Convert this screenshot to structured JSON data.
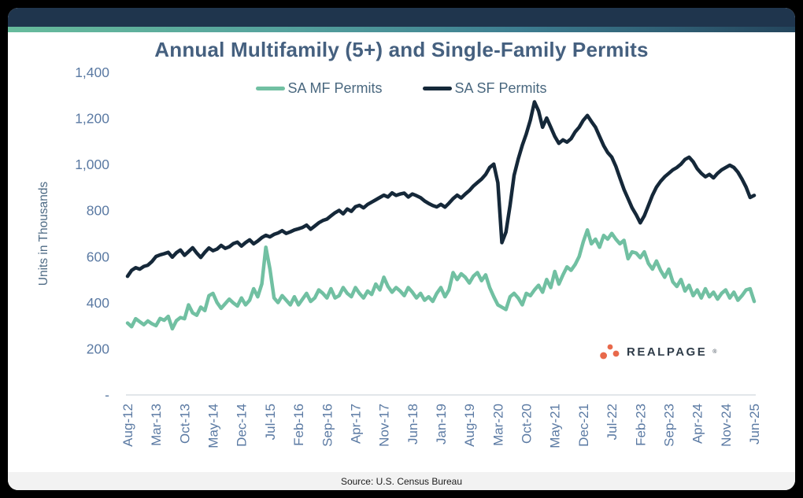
{
  "header": {
    "title": "Annual Multifamily (5+) and Single-Family Permits"
  },
  "colors": {
    "frame": "#000000",
    "card": "#ffffff",
    "topbar": "#1f354d",
    "accent_gradient": [
      "#67bb9c",
      "#3d7d90",
      "#24455c"
    ],
    "title_text": "#45607f",
    "tick_text": "#5b7aa3",
    "axis_title_text": "#4d6a84",
    "axis_line": "#d8dde4"
  },
  "chart_data": {
    "type": "line",
    "title": "Annual Multifamily (5+) and Single-Family Permits",
    "xlabel": "",
    "ylabel": "Units in Thousands",
    "ylim": [
      0,
      1400
    ],
    "grid": false,
    "legend_position": "top",
    "ytick_values": [
      0,
      200,
      400,
      600,
      800,
      1000,
      1200,
      1400
    ],
    "ytick_labels": [
      "-",
      "200",
      "400",
      "600",
      "800",
      "1,000",
      "1,200",
      "1,400"
    ],
    "x_start": "Aug-12",
    "x_end": "Jun-25",
    "x_frequency": "monthly",
    "xtick_every": 7,
    "xtick_labels": [
      "Aug-12",
      "Mar-13",
      "Oct-13",
      "May-14",
      "Dec-14",
      "Jul-15",
      "Feb-16",
      "Sep-16",
      "Apr-17",
      "Nov-17",
      "Jun-18",
      "Jan-19",
      "Aug-19",
      "Mar-20",
      "Oct-20",
      "May-21",
      "Dec-21",
      "Jul-22",
      "Feb-23",
      "Sep-23",
      "Apr-24",
      "Nov-24",
      "Jun-25"
    ],
    "series": [
      {
        "name": "SA MF Permits",
        "color": "#71c0a2",
        "values": [
          312,
          296,
          331,
          318,
          305,
          321,
          309,
          301,
          332,
          324,
          341,
          287,
          322,
          336,
          331,
          391,
          356,
          346,
          381,
          366,
          431,
          441,
          401,
          376,
          396,
          416,
          399,
          386,
          421,
          391,
          411,
          461,
          426,
          482,
          641,
          546,
          421,
          401,
          431,
          411,
          391,
          426,
          391,
          416,
          441,
          406,
          421,
          456,
          441,
          421,
          461,
          421,
          431,
          466,
          441,
          426,
          466,
          441,
          421,
          451,
          436,
          481,
          456,
          511,
          471,
          446,
          466,
          451,
          431,
          466,
          446,
          421,
          441,
          411,
          426,
          406,
          441,
          466,
          426,
          456,
          531,
          501,
          526,
          511,
          486,
          516,
          531,
          496,
          521,
          466,
          426,
          391,
          381,
          371,
          426,
          441,
          421,
          391,
          441,
          431,
          456,
          476,
          446,
          501,
          466,
          536,
          481,
          521,
          556,
          541,
          566,
          601,
          665,
          716,
          656,
          676,
          641,
          692,
          676,
          701,
          676,
          656,
          671,
          591,
          621,
          616,
          596,
          621,
          571,
          546,
          581,
          541,
          511,
          546,
          491,
          471,
          501,
          451,
          476,
          431,
          456,
          421,
          461,
          426,
          446,
          416,
          441,
          456,
          421,
          446,
          411,
          431,
          456,
          461,
          406
        ]
      },
      {
        "name": "SA SF Permits",
        "color": "#152839",
        "values": [
          515,
          541,
          552,
          546,
          558,
          563,
          579,
          601,
          608,
          613,
          619,
          598,
          617,
          629,
          606,
          622,
          639,
          616,
          597,
          619,
          638,
          626,
          633,
          649,
          636,
          643,
          657,
          663,
          646,
          661,
          673,
          656,
          668,
          683,
          693,
          686,
          697,
          703,
          713,
          701,
          708,
          716,
          721,
          727,
          737,
          719,
          733,
          747,
          757,
          763,
          777,
          791,
          801,
          786,
          807,
          797,
          817,
          823,
          812,
          827,
          837,
          847,
          857,
          867,
          859,
          877,
          866,
          872,
          876,
          859,
          872,
          865,
          856,
          842,
          831,
          822,
          816,
          827,
          815,
          832,
          852,
          867,
          855,
          872,
          887,
          907,
          922,
          937,
          957,
          987,
          1002,
          921,
          661,
          707,
          823,
          953,
          1023,
          1083,
          1133,
          1193,
          1272,
          1233,
          1162,
          1202,
          1162,
          1122,
          1092,
          1107,
          1097,
          1112,
          1142,
          1162,
          1192,
          1213,
          1187,
          1162,
          1122,
          1082,
          1052,
          1032,
          992,
          942,
          892,
          852,
          812,
          782,
          747,
          777,
          822,
          867,
          902,
          927,
          947,
          962,
          977,
          987,
          1002,
          1022,
          1032,
          1012,
          982,
          962,
          947,
          957,
          942,
          962,
          977,
          987,
          997,
          987,
          967,
          937,
          902,
          857,
          866
        ]
      }
    ]
  },
  "branding": {
    "name": "REALPAGE",
    "registered_mark": "®",
    "dot_color": "#e8694b",
    "text_color": "#2f3c49"
  },
  "footer": {
    "source": "Source: U.S. Census Bureau"
  }
}
